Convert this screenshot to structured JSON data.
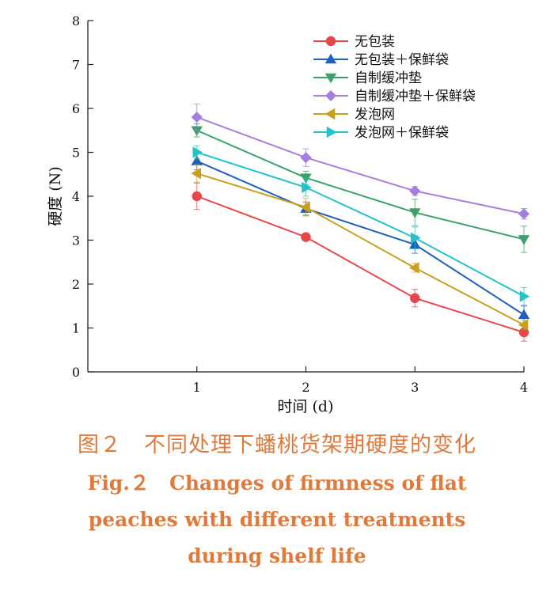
{
  "chart_data": {
    "type": "line",
    "title": "",
    "xlabel": "时间 (d)",
    "ylabel": "硬度 (N)",
    "x": [
      1,
      2,
      3,
      4
    ],
    "x_ticks": [
      "1",
      "2",
      "3",
      "4"
    ],
    "xlim": [
      0,
      4
    ],
    "ylim": [
      0,
      8
    ],
    "y_ticks": [
      "0",
      "1",
      "2",
      "3",
      "4",
      "5",
      "6",
      "7",
      "8"
    ],
    "grid": false,
    "legend_position": "top-right",
    "series": [
      {
        "name": "无包装",
        "color": "#e8474a",
        "marker": "circle",
        "values": [
          4.0,
          3.07,
          1.68,
          0.9
        ],
        "errors": [
          0.3,
          0.05,
          0.2,
          0.2
        ]
      },
      {
        "name": "无包装＋保鲜袋",
        "color": "#1f5fbd",
        "marker": "triangle-up",
        "values": [
          4.8,
          3.72,
          2.9,
          1.3
        ],
        "errors": [
          0.2,
          0.15,
          0.2,
          0.2
        ]
      },
      {
        "name": "自制缓冲垫",
        "color": "#3aa36b",
        "marker": "triangle-down",
        "values": [
          5.5,
          4.42,
          3.63,
          3.02
        ],
        "errors": [
          0.15,
          0.15,
          0.3,
          0.3
        ]
      },
      {
        "name": "自制缓冲垫＋保鲜袋",
        "color": "#a57ee0",
        "marker": "diamond",
        "values": [
          5.8,
          4.88,
          4.12,
          3.6
        ],
        "errors": [
          0.3,
          0.2,
          0.1,
          0.12
        ]
      },
      {
        "name": "发泡网",
        "color": "#c9a01e",
        "marker": "triangle-left",
        "values": [
          4.52,
          3.75,
          2.37,
          1.07
        ],
        "errors": [
          0.2,
          0.2,
          0.1,
          0.1
        ]
      },
      {
        "name": "发泡网＋保鲜袋",
        "color": "#22c3c9",
        "marker": "triangle-right",
        "values": [
          5.0,
          4.2,
          3.05,
          1.72
        ],
        "errors": [
          0.15,
          0.2,
          0.25,
          0.2
        ]
      }
    ]
  },
  "caption": {
    "cn": "图２　不同处理下蟠桃货架期硬度的变化",
    "en_line1": "Fig.２　Changes of firmness of flat",
    "en_line2": "peaches with different treatments",
    "en_line3": "during shelf life"
  }
}
